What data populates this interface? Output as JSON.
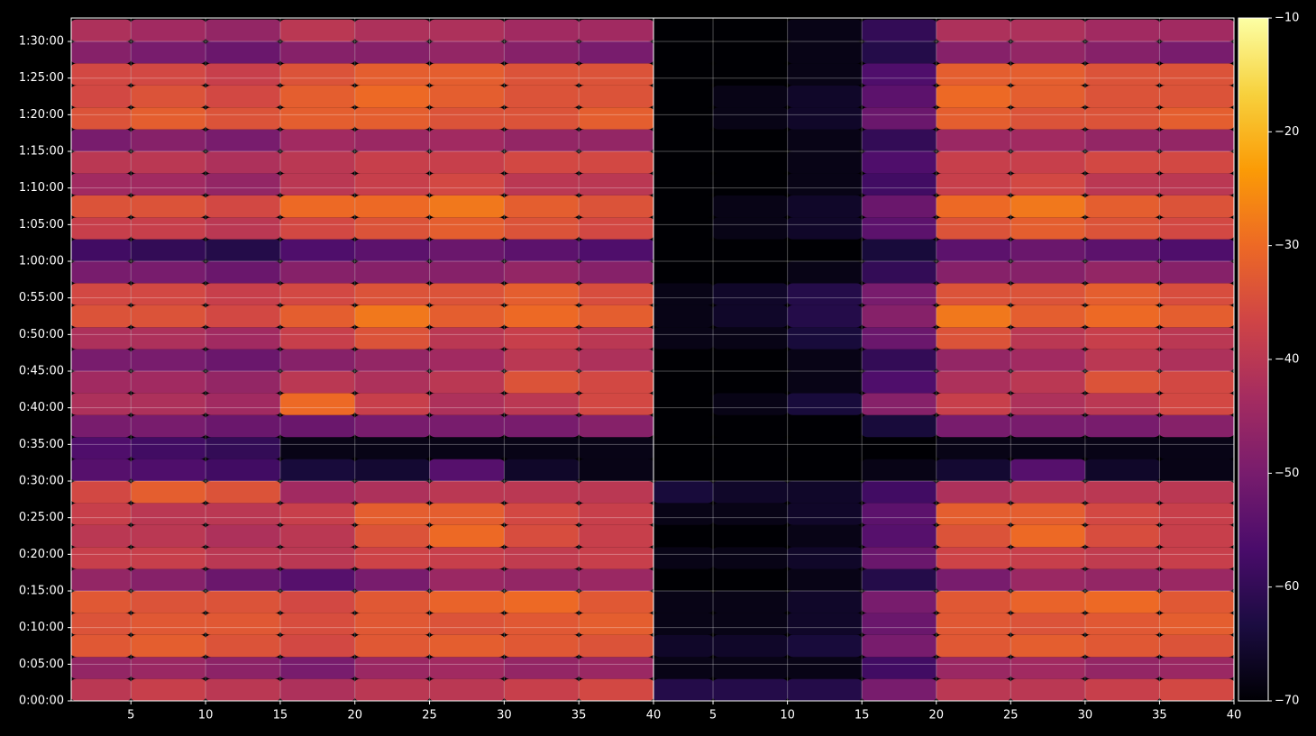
{
  "chart_data": [
    {
      "type": "heatmap",
      "xbins": [
        1,
        5,
        10,
        15,
        20,
        25,
        30,
        35,
        40
      ],
      "ybins": [
        0,
        180,
        360,
        540,
        720,
        900,
        1080,
        1260,
        1440,
        1620,
        1800,
        1980,
        2160,
        2340,
        2520,
        2700,
        2880,
        3060,
        3240,
        3420,
        3600,
        3780,
        3960,
        4140,
        4320,
        4500,
        4680,
        4860,
        5040,
        5220,
        5400,
        5580
      ],
      "xlim": [
        1,
        40
      ],
      "xticks": [
        5,
        10,
        15,
        20,
        25,
        30,
        35,
        40
      ],
      "ylim": [
        0,
        5592
      ],
      "yticks": [
        {
          "value": 0,
          "label": "0:00:00"
        },
        {
          "value": 300,
          "label": "0:05:00"
        },
        {
          "value": 600,
          "label": "0:10:00"
        },
        {
          "value": 900,
          "label": "0:15:00"
        },
        {
          "value": 1200,
          "label": "0:20:00"
        },
        {
          "value": 1500,
          "label": "0:25:00"
        },
        {
          "value": 1800,
          "label": "0:30:00"
        },
        {
          "value": 2100,
          "label": "0:35:00"
        },
        {
          "value": 2400,
          "label": "0:40:00"
        },
        {
          "value": 2700,
          "label": "0:45:00"
        },
        {
          "value": 3000,
          "label": "0:50:00"
        },
        {
          "value": 3300,
          "label": "0:55:00"
        },
        {
          "value": 3600,
          "label": "1:00:00"
        },
        {
          "value": 3900,
          "label": "1:05:00"
        },
        {
          "value": 4200,
          "label": "1:10:00"
        },
        {
          "value": 4500,
          "label": "1:15:00"
        },
        {
          "value": 4800,
          "label": "1:20:00"
        },
        {
          "value": 5100,
          "label": "1:25:00"
        },
        {
          "value": 5400,
          "label": "1:30:00"
        }
      ],
      "grid": true,
      "clim": [
        -70,
        -10
      ],
      "cticks": [
        {
          "value": -10,
          "label": "−10"
        },
        {
          "value": -20,
          "label": "−20"
        },
        {
          "value": -30,
          "label": "−30"
        },
        {
          "value": -40,
          "label": "−40"
        },
        {
          "value": -50,
          "label": "−50"
        },
        {
          "value": -60,
          "label": "−60"
        },
        {
          "value": -70,
          "label": "−70"
        }
      ],
      "colormap": [
        "#000004",
        "#1b0c41",
        "#4a0c6b",
        "#781c6d",
        "#a52c60",
        "#cf4446",
        "#ed6925",
        "#fb9b06",
        "#f7d13d",
        "#fcffa4"
      ],
      "values": [
        [
          -40,
          -38,
          -40,
          -42,
          -40,
          -40,
          -38,
          -36
        ],
        [
          -46,
          -45,
          -47,
          -50,
          -45,
          -44,
          -46,
          -45
        ],
        [
          -33,
          -32,
          -34,
          -36,
          -33,
          -32,
          -33,
          -34
        ],
        [
          -34,
          -33,
          -33,
          -35,
          -33,
          -34,
          -33,
          -32
        ],
        [
          -33,
          -34,
          -34,
          -36,
          -33,
          -31,
          -30,
          -33
        ],
        [
          -46,
          -48,
          -52,
          -55,
          -50,
          -45,
          -46,
          -45
        ],
        [
          -38,
          -38,
          -40,
          -40,
          -37,
          -38,
          -39,
          -38
        ],
        [
          -40,
          -40,
          -42,
          -40,
          -34,
          -30,
          -35,
          -38
        ],
        [
          -38,
          -40,
          -40,
          -38,
          -32,
          -32,
          -36,
          -38
        ],
        [
          -36,
          -32,
          -34,
          -44,
          -42,
          -40,
          -40,
          -40
        ],
        [
          -55,
          -56,
          -58,
          -64,
          -65,
          -55,
          -66,
          -68
        ],
        [
          -56,
          -58,
          -60,
          -68,
          -68,
          -68,
          -68,
          -68
        ],
        [
          -50,
          -50,
          -52,
          -52,
          -50,
          -50,
          -50,
          -48
        ],
        [
          -42,
          -42,
          -44,
          -30,
          -38,
          -42,
          -40,
          -36
        ],
        [
          -44,
          -44,
          -46,
          -40,
          -42,
          -40,
          -34,
          -36
        ],
        [
          -50,
          -50,
          -52,
          -48,
          -46,
          -44,
          -40,
          -42
        ],
        [
          -42,
          -42,
          -44,
          -38,
          -34,
          -40,
          -38,
          -40
        ],
        [
          -34,
          -34,
          -36,
          -32,
          -28,
          -32,
          -30,
          -32
        ],
        [
          -36,
          -36,
          -38,
          -36,
          -34,
          -34,
          -32,
          -35
        ],
        [
          -50,
          -50,
          -52,
          -48,
          -48,
          -48,
          -46,
          -48
        ],
        [
          -58,
          -60,
          -62,
          -56,
          -54,
          -52,
          -54,
          -56
        ],
        [
          -38,
          -38,
          -40,
          -36,
          -34,
          -32,
          -34,
          -36
        ],
        [
          -34,
          -34,
          -36,
          -30,
          -30,
          -28,
          -32,
          -34
        ],
        [
          -44,
          -44,
          -46,
          -40,
          -38,
          -36,
          -40,
          -40
        ],
        [
          -40,
          -40,
          -42,
          -40,
          -38,
          -38,
          -36,
          -36
        ],
        [
          -50,
          -48,
          -50,
          -44,
          -45,
          -44,
          -46,
          -46
        ],
        [
          -34,
          -32,
          -34,
          -32,
          -32,
          -34,
          -34,
          -32
        ],
        [
          -36,
          -34,
          -36,
          -32,
          -30,
          -32,
          -34,
          -34
        ],
        [
          -36,
          -36,
          -38,
          -34,
          -32,
          -32,
          -34,
          -34
        ],
        [
          -48,
          -50,
          -52,
          -48,
          -48,
          -46,
          -48,
          -50
        ],
        [
          -42,
          -44,
          -46,
          -40,
          -42,
          -42,
          -44,
          -44
        ]
      ]
    },
    {
      "type": "heatmap",
      "xbins": [
        1,
        5,
        10,
        15,
        20,
        25,
        30,
        35,
        40
      ],
      "ybins": [
        0,
        180,
        360,
        540,
        720,
        900,
        1080,
        1260,
        1440,
        1620,
        1800,
        1980,
        2160,
        2340,
        2520,
        2700,
        2880,
        3060,
        3240,
        3420,
        3600,
        3780,
        3960,
        4140,
        4320,
        4500,
        4680,
        4860,
        5040,
        5220,
        5400,
        5580
      ],
      "xlim": [
        1,
        40
      ],
      "xticks": [
        5,
        10,
        15,
        20,
        25,
        30,
        35,
        40
      ],
      "ylim": [
        0,
        5592
      ],
      "grid": true,
      "values": [
        [
          -62,
          -62,
          -62,
          -50,
          -40,
          -40,
          -38,
          -36
        ],
        [
          -68,
          -68,
          -68,
          -58,
          -45,
          -44,
          -46,
          -45
        ],
        [
          -66,
          -66,
          -64,
          -50,
          -33,
          -32,
          -33,
          -34
        ],
        [
          -68,
          -68,
          -66,
          -52,
          -33,
          -34,
          -33,
          -32
        ],
        [
          -68,
          -68,
          -66,
          -50,
          -33,
          -31,
          -30,
          -33
        ],
        [
          -70,
          -70,
          -68,
          -62,
          -50,
          -45,
          -46,
          -45
        ],
        [
          -68,
          -68,
          -66,
          -52,
          -37,
          -38,
          -39,
          -38
        ],
        [
          -70,
          -70,
          -68,
          -55,
          -34,
          -30,
          -35,
          -38
        ],
        [
          -68,
          -68,
          -66,
          -54,
          -32,
          -32,
          -36,
          -38
        ],
        [
          -64,
          -66,
          -66,
          -58,
          -42,
          -40,
          -40,
          -40
        ],
        [
          -70,
          -70,
          -70,
          -68,
          -65,
          -55,
          -66,
          -68
        ],
        [
          -70,
          -70,
          -70,
          -70,
          -68,
          -68,
          -68,
          -68
        ],
        [
          -70,
          -70,
          -70,
          -64,
          -50,
          -50,
          -50,
          -48
        ],
        [
          -70,
          -68,
          -64,
          -48,
          -38,
          -42,
          -40,
          -36
        ],
        [
          -70,
          -70,
          -68,
          -56,
          -42,
          -40,
          -34,
          -36
        ],
        [
          -70,
          -70,
          -68,
          -60,
          -46,
          -44,
          -40,
          -42
        ],
        [
          -68,
          -68,
          -64,
          -52,
          -34,
          -40,
          -38,
          -40
        ],
        [
          -68,
          -66,
          -62,
          -48,
          -28,
          -32,
          -30,
          -32
        ],
        [
          -68,
          -66,
          -62,
          -50,
          -34,
          -34,
          -32,
          -35
        ],
        [
          -70,
          -70,
          -68,
          -60,
          -48,
          -48,
          -46,
          -48
        ],
        [
          -70,
          -70,
          -70,
          -64,
          -54,
          -52,
          -54,
          -56
        ],
        [
          -70,
          -68,
          -66,
          -54,
          -34,
          -32,
          -34,
          -36
        ],
        [
          -70,
          -68,
          -66,
          -52,
          -30,
          -28,
          -32,
          -34
        ],
        [
          -70,
          -70,
          -68,
          -58,
          -38,
          -36,
          -40,
          -40
        ],
        [
          -70,
          -70,
          -68,
          -56,
          -38,
          -38,
          -36,
          -36
        ],
        [
          -70,
          -70,
          -68,
          -60,
          -45,
          -44,
          -46,
          -46
        ],
        [
          -70,
          -68,
          -66,
          -52,
          -32,
          -34,
          -34,
          -32
        ],
        [
          -70,
          -68,
          -66,
          -54,
          -30,
          -32,
          -34,
          -34
        ],
        [
          -70,
          -70,
          -68,
          -56,
          -32,
          -32,
          -34,
          -34
        ],
        [
          -70,
          -70,
          -68,
          -62,
          -48,
          -46,
          -48,
          -50
        ],
        [
          -70,
          -70,
          -68,
          -60,
          -42,
          -42,
          -44,
          -44
        ]
      ]
    }
  ]
}
